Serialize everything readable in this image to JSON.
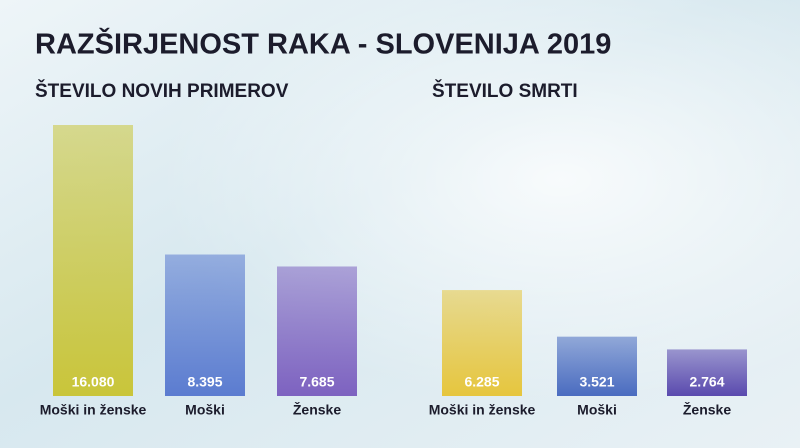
{
  "title": "RAZŠIRJENOST RAKA - SLOVENIJA 2019",
  "chart_data": [
    {
      "type": "bar",
      "title": "ŠTEVILO NOVIH PRIMEROV",
      "categories": [
        "Moški in ženske",
        "Moški",
        "Ženske"
      ],
      "values": [
        16080,
        8395,
        7685
      ],
      "value_labels": [
        "16.080",
        "8.395",
        "7.685"
      ],
      "colors": [
        "#c9c53a",
        "#5b7cd0",
        "#7d62c0"
      ]
    },
    {
      "type": "bar",
      "title": "ŠTEVILO SMRTI",
      "categories": [
        "Moški in ženske",
        "Moški",
        "Ženske"
      ],
      "values": [
        6285,
        3521,
        2764
      ],
      "value_labels": [
        "6.285",
        "3.521",
        "2.764"
      ],
      "colors": [
        "#e6c63e",
        "#4a6cc0",
        "#5a4aae"
      ]
    }
  ]
}
